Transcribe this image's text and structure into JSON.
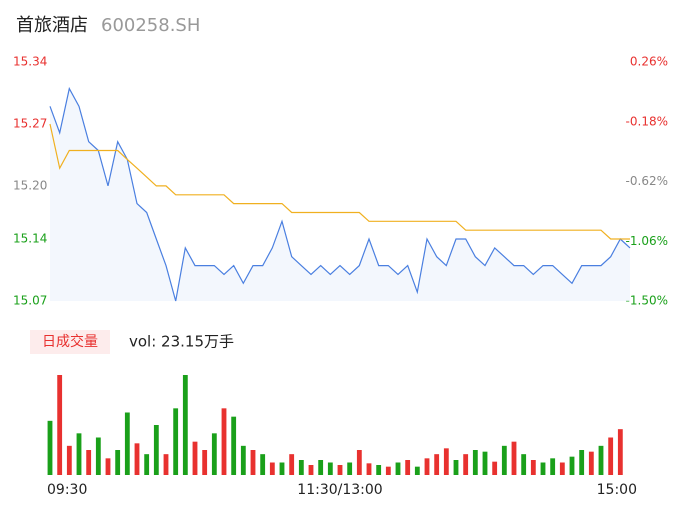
{
  "chart_data": [
    {
      "type": "line",
      "title": "首旅酒店",
      "subtitle": "600258.SH",
      "xlim": [
        0,
        240
      ],
      "xticks": [
        {
          "value": 0,
          "label": "09:30"
        },
        {
          "value": 120,
          "label": "11:30/13:00"
        },
        {
          "value": 240,
          "label": "15:00"
        }
      ],
      "ylim": [
        15.07,
        15.34
      ],
      "yticks": [
        15.34,
        15.27,
        {
          "value": 15.2,
          "label": "15.20"
        },
        15.14,
        15.07
      ],
      "ytick_colors": [
        "#e8312f",
        "#e8312f",
        "#888888",
        "#1aa01a",
        "#1aa01a"
      ],
      "y2lim": [
        -1.5,
        0.26
      ],
      "y2ticks": [
        {
          "value": 0.26,
          "label": "0.26%"
        },
        {
          "value": -0.18,
          "label": "-0.18%"
        },
        {
          "value": -0.62,
          "label": "-0.62%"
        },
        {
          "value": -1.06,
          "label": "-1.06%"
        },
        {
          "value": -1.5,
          "label": "-1.50%"
        }
      ],
      "x": [
        0,
        4,
        8,
        12,
        16,
        20,
        24,
        28,
        32,
        36,
        40,
        44,
        48,
        52,
        56,
        60,
        64,
        68,
        72,
        76,
        80,
        84,
        88,
        92,
        96,
        100,
        104,
        108,
        112,
        116,
        120,
        124,
        128,
        132,
        136,
        140,
        144,
        148,
        152,
        156,
        160,
        164,
        168,
        172,
        176,
        180,
        184,
        188,
        192,
        196,
        200,
        204,
        208,
        212,
        216,
        220,
        224,
        228,
        232,
        236,
        240
      ],
      "series": [
        {
          "color": "#4a7fe0",
          "values": [
            15.29,
            15.26,
            15.31,
            15.29,
            15.25,
            15.24,
            15.2,
            15.25,
            15.23,
            15.18,
            15.17,
            15.14,
            15.11,
            15.07,
            15.13,
            15.11,
            15.11,
            15.11,
            15.1,
            15.11,
            15.09,
            15.11,
            15.11,
            15.13,
            15.16,
            15.12,
            15.11,
            15.1,
            15.11,
            15.1,
            15.11,
            15.1,
            15.11,
            15.14,
            15.11,
            15.11,
            15.1,
            15.11,
            15.08,
            15.14,
            15.12,
            15.11,
            15.14,
            15.14,
            15.12,
            15.11,
            15.13,
            15.12,
            15.11,
            15.11,
            15.1,
            15.11,
            15.11,
            15.1,
            15.09,
            15.11,
            15.11,
            15.11,
            15.12,
            15.14,
            15.13
          ]
        },
        {
          "color": "#f0b020",
          "values": [
            15.27,
            15.22,
            15.24,
            15.24,
            15.24,
            15.24,
            15.24,
            15.24,
            15.23,
            15.22,
            15.21,
            15.2,
            15.2,
            15.19,
            15.19,
            15.19,
            15.19,
            15.19,
            15.19,
            15.18,
            15.18,
            15.18,
            15.18,
            15.18,
            15.18,
            15.17,
            15.17,
            15.17,
            15.17,
            15.17,
            15.17,
            15.17,
            15.17,
            15.16,
            15.16,
            15.16,
            15.16,
            15.16,
            15.16,
            15.16,
            15.16,
            15.16,
            15.16,
            15.15,
            15.15,
            15.15,
            15.15,
            15.15,
            15.15,
            15.15,
            15.15,
            15.15,
            15.15,
            15.15,
            15.15,
            15.15,
            15.15,
            15.15,
            15.14,
            15.14,
            15.14
          ]
        }
      ]
    },
    {
      "type": "bar",
      "label": "日成交量",
      "summary": "vol: 23.15万手",
      "xlim": [
        0,
        240
      ],
      "x": [
        0,
        4,
        8,
        12,
        16,
        20,
        24,
        28,
        32,
        36,
        40,
        44,
        48,
        52,
        56,
        60,
        64,
        68,
        72,
        76,
        80,
        84,
        88,
        92,
        96,
        100,
        104,
        108,
        112,
        116,
        120,
        124,
        128,
        132,
        136,
        140,
        144,
        148,
        152,
        156,
        160,
        164,
        168,
        172,
        176,
        180,
        184,
        188,
        192,
        196,
        200,
        204,
        208,
        212,
        216,
        220,
        224,
        228,
        232,
        236
      ],
      "values": [
        6500,
        12000,
        3500,
        5000,
        3000,
        4500,
        2000,
        3000,
        7500,
        3800,
        2500,
        6000,
        2500,
        8000,
        12000,
        4000,
        3000,
        5000,
        8000,
        7000,
        3500,
        3000,
        2500,
        1500,
        1500,
        2500,
        1800,
        1200,
        1800,
        1500,
        1200,
        1500,
        3000,
        1400,
        1200,
        1000,
        1500,
        1800,
        1000,
        2000,
        2500,
        3200,
        1800,
        2500,
        3000,
        2800,
        1600,
        3500,
        4000,
        2500,
        1800,
        1500,
        2000,
        1500,
        2200,
        3000,
        2800,
        3500,
        4500,
        5500
      ],
      "colors": [
        "#1aa01a",
        "#e8312f",
        "#e8312f",
        "#1aa01a",
        "#e8312f",
        "#1aa01a",
        "#e8312f",
        "#1aa01a",
        "#1aa01a",
        "#e8312f",
        "#1aa01a",
        "#1aa01a",
        "#e8312f",
        "#1aa01a",
        "#1aa01a",
        "#e8312f",
        "#e8312f",
        "#1aa01a",
        "#e8312f",
        "#1aa01a",
        "#1aa01a",
        "#e8312f",
        "#1aa01a",
        "#e8312f",
        "#1aa01a",
        "#e8312f",
        "#1aa01a",
        "#e8312f",
        "#1aa01a",
        "#1aa01a",
        "#e8312f",
        "#1aa01a",
        "#e8312f",
        "#e8312f",
        "#1aa01a",
        "#e8312f",
        "#1aa01a",
        "#e8312f",
        "#1aa01a",
        "#e8312f",
        "#e8312f",
        "#e8312f",
        "#1aa01a",
        "#e8312f",
        "#1aa01a",
        "#1aa01a",
        "#e8312f",
        "#1aa01a",
        "#e8312f",
        "#1aa01a",
        "#e8312f",
        "#1aa01a",
        "#1aa01a",
        "#e8312f",
        "#1aa01a",
        "#1aa01a",
        "#e8312f",
        "#1aa01a",
        "#e8312f",
        "#e8312f"
      ]
    }
  ]
}
